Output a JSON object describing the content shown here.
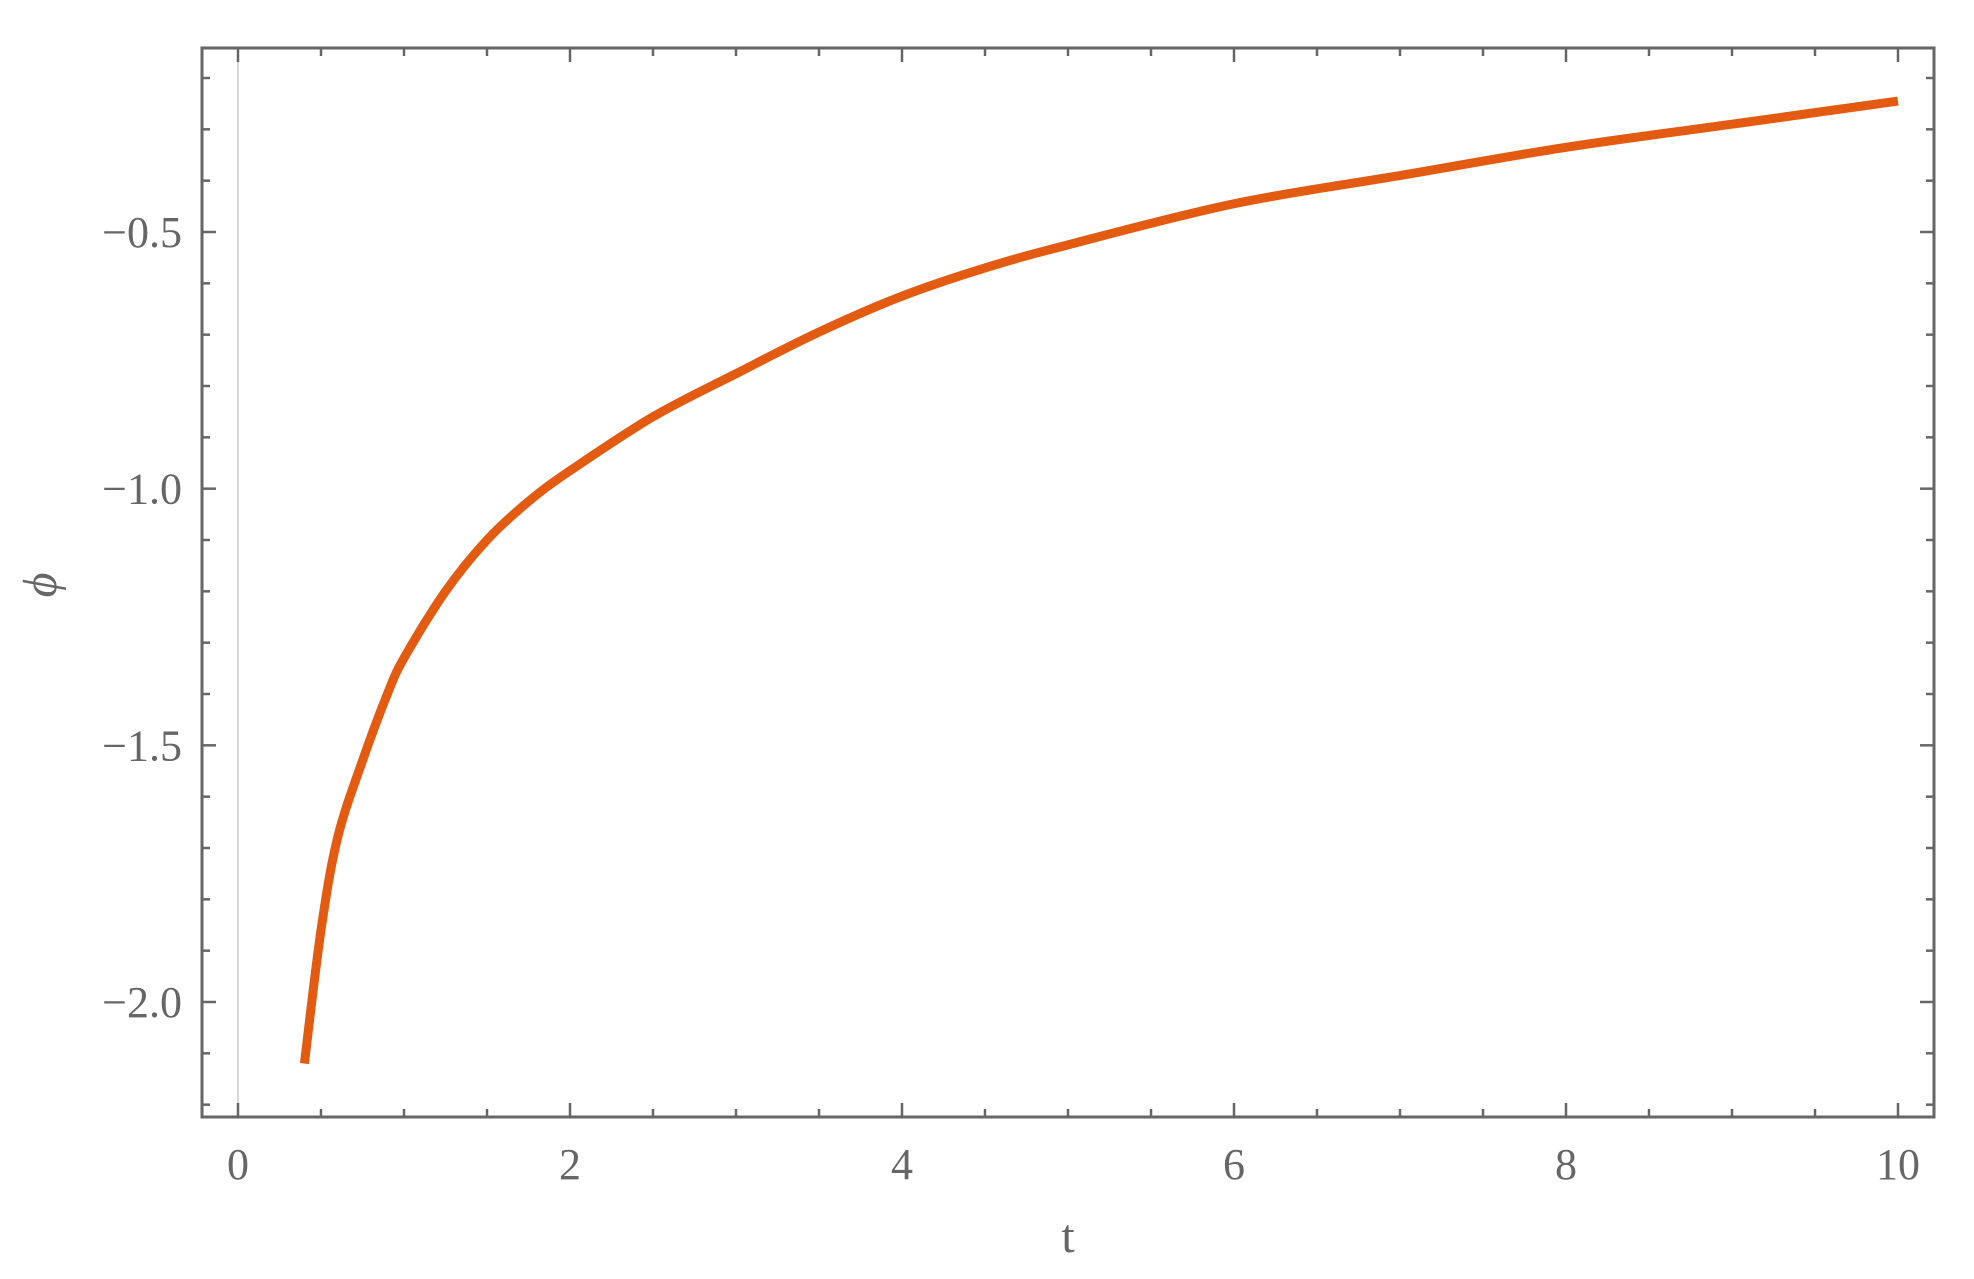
{
  "chart_data": {
    "type": "line",
    "title": "",
    "xlabel": "t",
    "ylabel": "ϕ",
    "xlim": [
      -0.2,
      10.2
    ],
    "ylim": [
      -2.22,
      -0.14
    ],
    "xticks": [
      0,
      2,
      4,
      6,
      8,
      10
    ],
    "xtick_labels": [
      "0",
      "2",
      "4",
      "6",
      "8",
      "10"
    ],
    "yticks": [
      -2.0,
      -1.5,
      -1.0,
      -0.5
    ],
    "ytick_labels": [
      "−2.0",
      "−1.5",
      "−1.0",
      "−0.5"
    ],
    "grid": false,
    "frame": true,
    "series": [
      {
        "color": "#E35B10",
        "x": [
          0.4,
          0.5,
          0.6,
          0.75,
          0.9,
          1.0,
          1.25,
          1.5,
          1.75,
          2.0,
          2.5,
          3.0,
          3.5,
          4.0,
          4.5,
          5.0,
          6.0,
          7.0,
          8.0,
          9.0,
          10.0
        ],
        "y": [
          -2.12,
          -1.86,
          -1.68,
          -1.53,
          -1.4,
          -1.33,
          -1.2,
          -1.1,
          -1.025,
          -0.965,
          -0.86,
          -0.776,
          -0.695,
          -0.625,
          -0.57,
          -0.525,
          -0.445,
          -0.39,
          -0.335,
          -0.29,
          -0.245
        ]
      }
    ]
  }
}
